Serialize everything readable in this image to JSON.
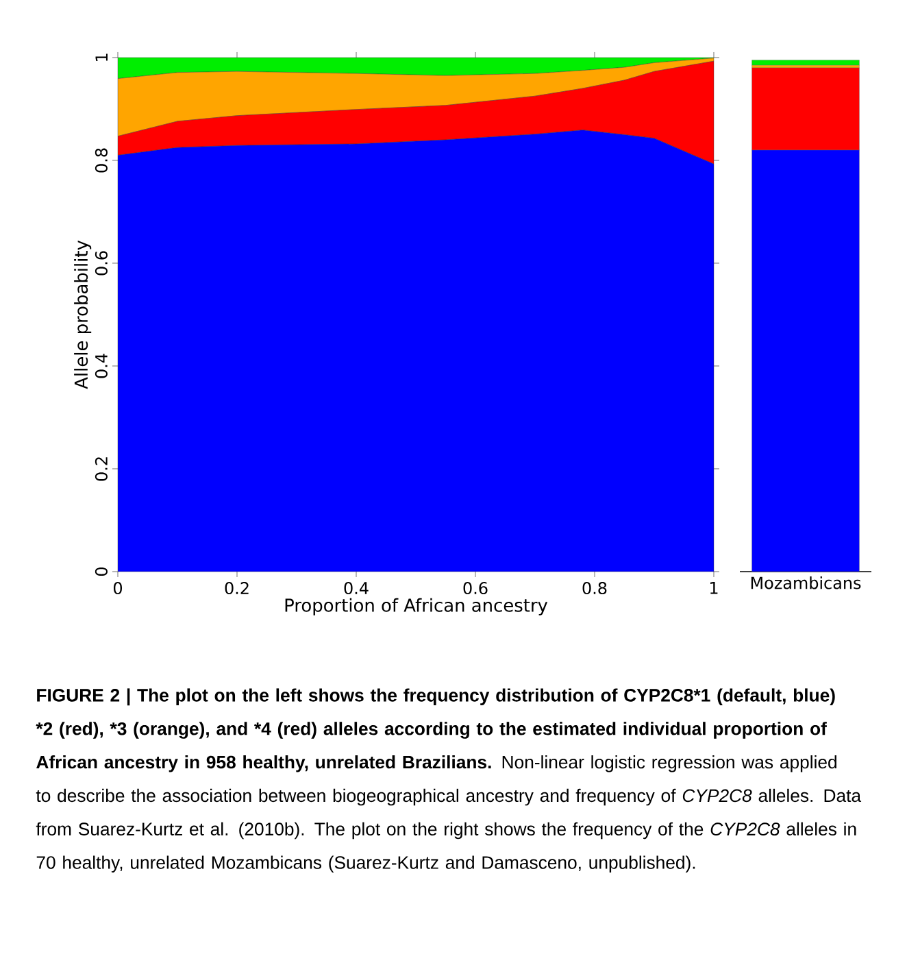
{
  "chart_data": [
    {
      "type": "area",
      "stacked": true,
      "xlabel": "Proportion of African ancestry",
      "ylabel": "Allele probability",
      "x": [
        0,
        0.1,
        0.2,
        0.4,
        0.55,
        0.7,
        0.78,
        0.85,
        0.9,
        1
      ],
      "series": [
        {
          "color": "#0000ff",
          "values": [
            0.81,
            0.825,
            0.829,
            0.832,
            0.84,
            0.851,
            0.859,
            0.85,
            0.843,
            0.793
          ]
        },
        {
          "color": "#ff0000",
          "values": [
            0.037,
            0.051,
            0.058,
            0.067,
            0.067,
            0.074,
            0.081,
            0.106,
            0.13,
            0.2
          ]
        },
        {
          "color": "#ffa500",
          "values": [
            0.112,
            0.095,
            0.086,
            0.07,
            0.058,
            0.044,
            0.035,
            0.025,
            0.017,
            0.006
          ]
        },
        {
          "color": "#00ee00",
          "values": [
            0.041,
            0.029,
            0.027,
            0.031,
            0.035,
            0.031,
            0.025,
            0.019,
            0.01,
            0.001
          ]
        }
      ],
      "xlim": [
        0,
        1
      ],
      "ylim": [
        0,
        1
      ],
      "xticks": [
        0,
        0.2,
        0.4,
        0.6,
        0.8,
        1
      ],
      "yticks": [
        0,
        0.2,
        0.4,
        0.6,
        0.8,
        1
      ],
      "annotations": [
        "FIGURE 2 | The plot on the left shows the frequency distribution of CYP2C8*1 (default, blue) *2 (red), *3 (orange), and *4 (red) alleles according to the estimated individual proportion of African ancestry in 958 healthy, unrelated Brazilians.",
        "Non-linear logistic regression was applied to describe the association between biogeographical ancestry and frequency of *CYP2C8* alleles. Data from Suarez-Kurtz et al. (2010b). The plot on the right shows the frequency of the *CYP2C8* alleles in 70 healthy, unrelated Mozambicans (Suarez-Kurtz and Damasceno, unpublished)."
      ]
    },
    {
      "type": "bar",
      "stacked": true,
      "categories": [
        "Mozambicans"
      ],
      "ylim": [
        0,
        1
      ],
      "tick_labels": "x",
      "series": [
        {
          "color": "#0000ff",
          "values": [
            0.82
          ]
        },
        {
          "color": "#ff0000",
          "values": [
            0.16
          ]
        },
        {
          "color": "#ffa500",
          "values": [
            0.005
          ]
        },
        {
          "color": "#00ee00",
          "values": [
            0.01
          ]
        }
      ]
    }
  ]
}
